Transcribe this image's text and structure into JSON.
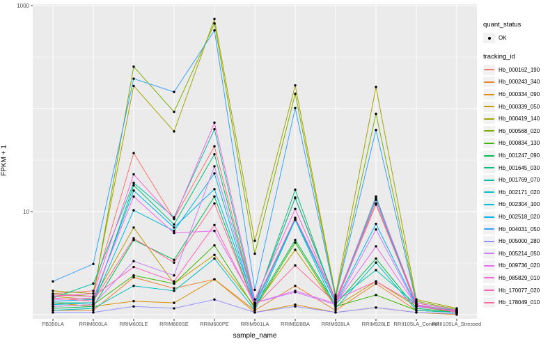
{
  "axes": {
    "y_ticks": [
      "1000",
      "10"
    ],
    "x_ticks_note": "last two category labels overlap in render"
  },
  "legend": {
    "quant_status": {
      "title": "quant_status",
      "items": [
        {
          "label": "OK",
          "symbol": "point"
        }
      ]
    },
    "tracking_id": {
      "title": "tracking_id"
    }
  },
  "chart_data": {
    "type": "line",
    "title": "",
    "xlabel": "sample_name",
    "ylabel": "FPKM + 1",
    "y_scale": "log10",
    "ylim": [
      1,
      1000
    ],
    "grid": "on",
    "legend_position": "right",
    "panel_bg": "#EBEBEB",
    "grid_color": "#FFFFFF",
    "point_color": "#000000",
    "categories": [
      "PB350LA",
      "RRIM600LA",
      "RRIM600LE",
      "RRIM600SE",
      "RRIM600PE",
      "RRIM901LA",
      "RRIM928BA",
      "RRIM928LA",
      "RRIM928LE",
      "RRII105LA_Control",
      "RRII105LA_Stressed"
    ],
    "series": [
      {
        "name": "Hb_000162_190",
        "color": "#F8766D",
        "values": [
          1.6,
          1.7,
          37,
          8.5,
          43,
          1.3,
          13.7,
          1.4,
          12,
          1.3,
          1.1
        ]
      },
      {
        "name": "Hb_000243_340",
        "color": "#EA8331",
        "values": [
          1.1,
          1.1,
          2.3,
          1.8,
          2.2,
          1.1,
          1.9,
          1.1,
          2.0,
          1.1,
          1.05
        ]
      },
      {
        "name": "Hb_000334_090",
        "color": "#D89000",
        "values": [
          1.3,
          1.2,
          1.35,
          1.3,
          2.2,
          1.05,
          1.25,
          1.05,
          1.17,
          1.05,
          1.0
        ]
      },
      {
        "name": "Hb_000339_050",
        "color": "#C09B00",
        "values": [
          1.5,
          1.4,
          7.0,
          2.0,
          3.8,
          1.2,
          4.25,
          1.2,
          2.1,
          1.2,
          1.05
        ]
      },
      {
        "name": "Hb_000419_140",
        "color": "#A3A500",
        "values": [
          1.7,
          1.6,
          166,
          60,
          740,
          5.2,
          168,
          1.55,
          162,
          1.4,
          1.15
        ]
      },
      {
        "name": "Hb_000568_020",
        "color": "#7CAE00",
        "values": [
          1.6,
          1.5,
          255,
          93,
          670,
          3.9,
          139,
          1.5,
          89,
          1.35,
          1.12
        ]
      },
      {
        "name": "Hb_000834_130",
        "color": "#39B600",
        "values": [
          1.2,
          1.25,
          2.4,
          2.0,
          4.7,
          1.15,
          5.0,
          1.2,
          1.55,
          1.1,
          1.05
        ]
      },
      {
        "name": "Hb_001247_090",
        "color": "#00BB4E",
        "values": [
          1.15,
          1.2,
          5.3,
          3.4,
          14,
          1.2,
          5.3,
          1.25,
          3.5,
          1.15,
          1.05
        ]
      },
      {
        "name": "Hb_001645_030",
        "color": "#00BF7D",
        "values": [
          1.3,
          1.3,
          18,
          7.5,
          36,
          1.25,
          16.3,
          1.3,
          14,
          1.2,
          1.1
        ]
      },
      {
        "name": "Hb_001769_070",
        "color": "#00C1A3",
        "values": [
          1.45,
          2.0,
          19,
          8.8,
          63,
          1.3,
          13.5,
          1.35,
          2.7,
          1.25,
          1.08
        ]
      },
      {
        "name": "Hb_002171_020",
        "color": "#00BFC4",
        "values": [
          1.1,
          1.15,
          1.9,
          1.7,
          3.5,
          1.1,
          8.3,
          1.15,
          3.2,
          1.1,
          1.05
        ]
      },
      {
        "name": "Hb_002304_100",
        "color": "#00BAE0",
        "values": [
          1.25,
          1.3,
          10.3,
          6.5,
          23.5,
          1.2,
          8.4,
          1.3,
          13,
          1.2,
          1.07
        ]
      },
      {
        "name": "Hb_002518_020",
        "color": "#00B0F6",
        "values": [
          1.35,
          1.4,
          16,
          7.0,
          16.5,
          1.28,
          8.6,
          1.3,
          7.6,
          1.22,
          1.08
        ]
      },
      {
        "name": "Hb_004031_050",
        "color": "#35A2FF",
        "values": [
          2.1,
          3.1,
          195,
          145,
          574,
          1.74,
          101,
          1.45,
          62,
          1.3,
          1.1
        ]
      },
      {
        "name": "Hb_005000_280",
        "color": "#9590FF",
        "values": [
          1.05,
          1.05,
          1.2,
          1.15,
          1.4,
          1.05,
          1.2,
          1.05,
          1.17,
          1.05,
          1.02
        ]
      },
      {
        "name": "Hb_005214_050",
        "color": "#C77CFF",
        "values": [
          1.2,
          1.25,
          3.3,
          2.4,
          27.5,
          1.3,
          1.65,
          1.25,
          6.7,
          1.2,
          1.07
        ]
      },
      {
        "name": "Hb_009736_020",
        "color": "#E76BF3",
        "values": [
          1.4,
          1.45,
          14,
          6.2,
          6.5,
          1.3,
          1.7,
          1.28,
          4.6,
          1.22,
          1.08
        ]
      },
      {
        "name": "Hb_085829_010",
        "color": "#FA62DB",
        "values": [
          1.5,
          1.6,
          23,
          8.5,
          73,
          1.4,
          10.6,
          1.35,
          13.5,
          1.3,
          1.1
        ]
      },
      {
        "name": "Hb_170077_020",
        "color": "#FF62BC",
        "values": [
          1.55,
          1.5,
          2.9,
          2.1,
          7.4,
          1.25,
          8.7,
          1.4,
          2.1,
          1.25,
          1.06
        ]
      },
      {
        "name": "Hb_178049_010",
        "color": "#FF6A98",
        "values": [
          1.45,
          1.35,
          5.5,
          3.2,
          12,
          1.2,
          3.0,
          1.3,
          11.7,
          1.25,
          1.05
        ]
      }
    ]
  }
}
